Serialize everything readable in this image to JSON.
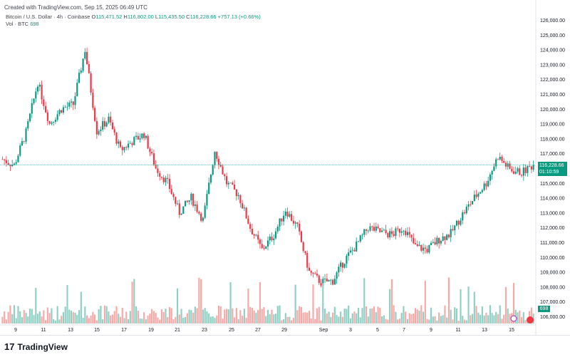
{
  "header": {
    "created_text": "Created with TradingView.com, Sep 15, 2025 06:49 UTC",
    "symbol_label": "Bitcoin / U.S. Dollar · 4h · Coinbase",
    "ohlc": {
      "open_label": "O",
      "open": "115,471.52",
      "high_label": "H",
      "high": "116,802.00",
      "low_label": "L",
      "low": "115,435.50",
      "close_label": "C",
      "close": "116,228.66",
      "change": "+757.13 (+0.66%)"
    },
    "volume_label": "Vol · BTC",
    "volume_value": "698"
  },
  "price_axis": {
    "current_price": "116,228.66",
    "countdown": "01:10:59",
    "volume_tag": "698"
  },
  "footer": {
    "brand": "TradingView",
    "logo_glyph": "17"
  },
  "colors": {
    "up": "#089981",
    "down": "#f23645",
    "up_vol": "#8fcfc4",
    "down_vol": "#f7a9a7",
    "price_line": "#089981"
  },
  "chart_data": {
    "type": "candlestick",
    "title": "Bitcoin / U.S. Dollar · 4h · Coinbase",
    "ylim": [
      106000,
      126000
    ],
    "y_ticks": [
      "126,000.00",
      "125,000.00",
      "124,000.00",
      "123,000.00",
      "122,000.00",
      "121,000.00",
      "120,000.00",
      "119,000.00",
      "118,000.00",
      "117,000.00",
      "116,000.00",
      "115,000.00",
      "114,000.00",
      "113,000.00",
      "112,000.00",
      "111,000.00",
      "110,000.00",
      "109,000.00",
      "108,000.00",
      "107,000.00",
      "106,000.00"
    ],
    "x_ticks": [
      "9",
      "11",
      "13",
      "15",
      "17",
      "19",
      "21",
      "23",
      "25",
      "27",
      "29",
      "Sep",
      "3",
      "5",
      "7",
      "9",
      "11",
      "13",
      "15"
    ],
    "close_path": [
      [
        0,
        116600
      ],
      [
        6,
        116200
      ],
      [
        12,
        118400
      ],
      [
        18,
        121800
      ],
      [
        24,
        119000
      ],
      [
        30,
        120000
      ],
      [
        36,
        120300
      ],
      [
        42,
        124000
      ],
      [
        48,
        118500
      ],
      [
        54,
        119300
      ],
      [
        60,
        117200
      ],
      [
        66,
        117800
      ],
      [
        72,
        118300
      ],
      [
        78,
        116000
      ],
      [
        84,
        115000
      ],
      [
        90,
        113000
      ],
      [
        96,
        114000
      ],
      [
        102,
        112500
      ],
      [
        108,
        117200
      ],
      [
        114,
        115000
      ],
      [
        120,
        114200
      ],
      [
        126,
        112000
      ],
      [
        132,
        110500
      ],
      [
        138,
        111500
      ],
      [
        144,
        113200
      ],
      [
        150,
        112000
      ],
      [
        156,
        109000
      ],
      [
        162,
        108300
      ],
      [
        168,
        108400
      ],
      [
        174,
        109800
      ],
      [
        180,
        110800
      ],
      [
        186,
        112000
      ],
      [
        192,
        111700
      ],
      [
        198,
        111500
      ],
      [
        204,
        112000
      ],
      [
        210,
        110700
      ],
      [
        216,
        110500
      ],
      [
        222,
        111200
      ],
      [
        228,
        111600
      ],
      [
        234,
        112900
      ],
      [
        240,
        114000
      ],
      [
        246,
        115000
      ],
      [
        252,
        116800
      ],
      [
        258,
        115900
      ],
      [
        264,
        115700
      ],
      [
        270,
        116230
      ]
    ],
    "volume_range": [
      0,
      6
    ],
    "last_volume": 698
  }
}
